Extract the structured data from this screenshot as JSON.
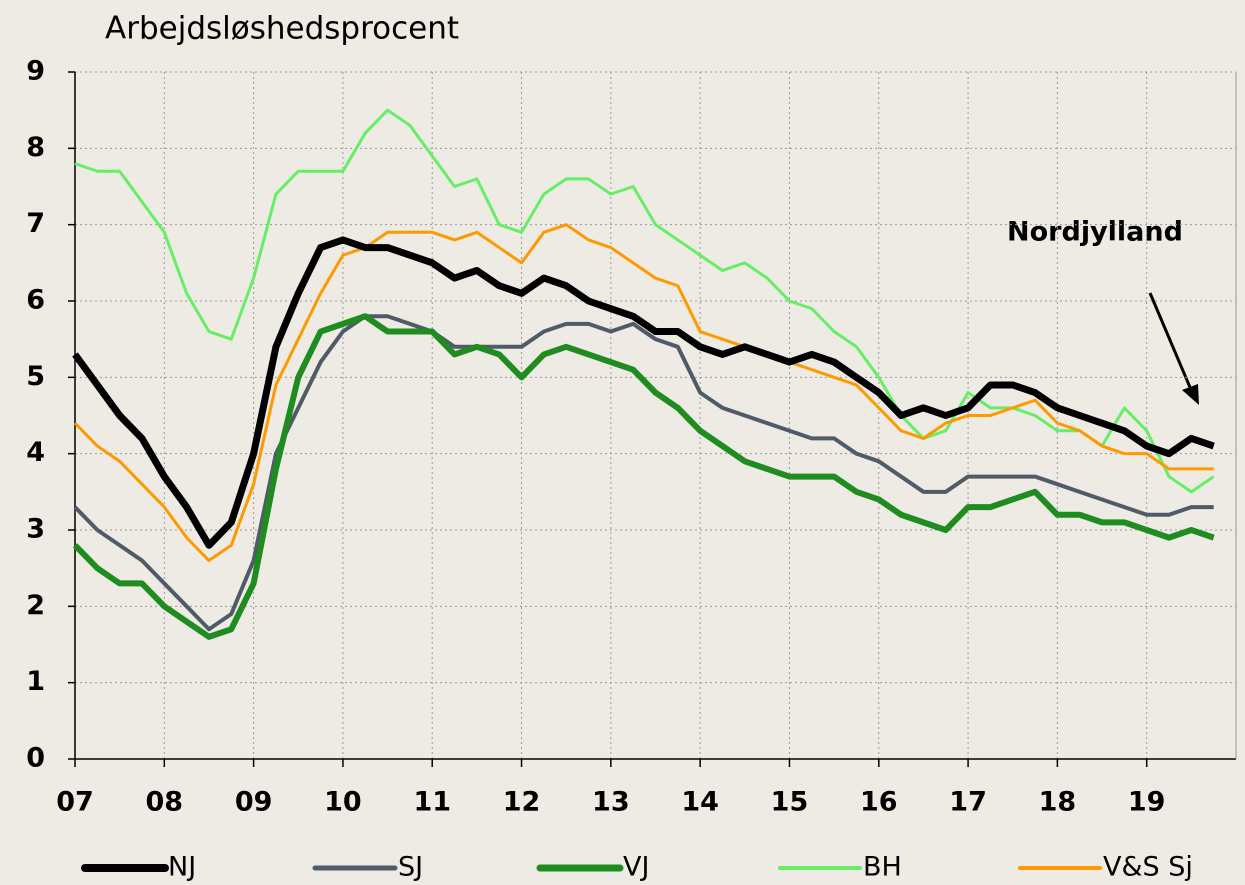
{
  "chart_data": {
    "type": "line",
    "title": "Arbejdsløshedsprocent",
    "annotation": "Nordjylland",
    "xlim": [
      2007,
      2020
    ],
    "xticks": [
      {
        "value": 2007,
        "label": "07"
      },
      {
        "value": 2008,
        "label": "08"
      },
      {
        "value": 2009,
        "label": "09"
      },
      {
        "value": 2010,
        "label": "10"
      },
      {
        "value": 2011,
        "label": "11"
      },
      {
        "value": 2012,
        "label": "12"
      },
      {
        "value": 2013,
        "label": "13"
      },
      {
        "value": 2014,
        "label": "14"
      },
      {
        "value": 2015,
        "label": "15"
      },
      {
        "value": 2016,
        "label": "16"
      },
      {
        "value": 2017,
        "label": "17"
      },
      {
        "value": 2018,
        "label": "18"
      },
      {
        "value": 2019,
        "label": "19"
      }
    ],
    "ylim": [
      0,
      9
    ],
    "yticks": [
      0,
      1,
      2,
      3,
      4,
      5,
      6,
      7,
      8,
      9
    ],
    "grid": true,
    "legend": "bottom",
    "x": [
      2007,
      2007.25,
      2007.5,
      2007.75,
      2008,
      2008.25,
      2008.5,
      2008.75,
      2009,
      2009.25,
      2009.5,
      2009.75,
      2010,
      2010.25,
      2010.5,
      2010.75,
      2011,
      2011.25,
      2011.5,
      2011.75,
      2012,
      2012.25,
      2012.5,
      2012.75,
      2013,
      2013.25,
      2013.5,
      2013.75,
      2014,
      2014.25,
      2014.5,
      2014.75,
      2015,
      2015.25,
      2015.5,
      2015.75,
      2016,
      2016.25,
      2016.5,
      2016.75,
      2017,
      2017.25,
      2017.5,
      2017.75,
      2018,
      2018.25,
      2018.5,
      2018.75,
      2019,
      2019.25,
      2019.5,
      2019.75
    ],
    "series": [
      {
        "name": "NJ",
        "color": "#000000",
        "line_width": 7,
        "values": [
          5.3,
          4.9,
          4.5,
          4.2,
          3.7,
          3.3,
          2.8,
          3.1,
          4.0,
          5.4,
          6.1,
          6.7,
          6.8,
          6.7,
          6.7,
          6.6,
          6.5,
          6.3,
          6.4,
          6.2,
          6.1,
          6.3,
          6.2,
          6.0,
          5.9,
          5.8,
          5.6,
          5.6,
          5.4,
          5.3,
          5.4,
          5.3,
          5.2,
          5.3,
          5.2,
          5.0,
          4.8,
          4.5,
          4.6,
          4.5,
          4.6,
          4.9,
          4.9,
          4.8,
          4.6,
          4.5,
          4.4,
          4.3,
          4.1,
          4.0,
          4.2,
          4.1
        ]
      },
      {
        "name": "SJ",
        "color": "#4f5b66",
        "line_width": 4,
        "values": [
          3.3,
          3.0,
          2.8,
          2.6,
          2.3,
          2.0,
          1.7,
          1.9,
          2.6,
          4.0,
          4.6,
          5.2,
          5.6,
          5.8,
          5.8,
          5.7,
          5.6,
          5.4,
          5.4,
          5.4,
          5.4,
          5.6,
          5.7,
          5.7,
          5.6,
          5.7,
          5.5,
          5.4,
          4.8,
          4.6,
          4.5,
          4.4,
          4.3,
          4.2,
          4.2,
          4.0,
          3.9,
          3.7,
          3.5,
          3.5,
          3.7,
          3.7,
          3.7,
          3.7,
          3.6,
          3.5,
          3.4,
          3.3,
          3.2,
          3.2,
          3.3,
          3.3
        ]
      },
      {
        "name": "VJ",
        "color": "#1e8c1e",
        "line_width": 6,
        "values": [
          2.8,
          2.5,
          2.3,
          2.3,
          2.0,
          1.8,
          1.6,
          1.7,
          2.3,
          3.8,
          5.0,
          5.6,
          5.7,
          5.8,
          5.6,
          5.6,
          5.6,
          5.3,
          5.4,
          5.3,
          5.0,
          5.3,
          5.4,
          5.3,
          5.2,
          5.1,
          4.8,
          4.6,
          4.3,
          4.1,
          3.9,
          3.8,
          3.7,
          3.7,
          3.7,
          3.5,
          3.4,
          3.2,
          3.1,
          3.0,
          3.3,
          3.3,
          3.4,
          3.5,
          3.2,
          3.2,
          3.1,
          3.1,
          3.0,
          2.9,
          3.0,
          2.9
        ]
      },
      {
        "name": "BH",
        "color": "#66ee66",
        "line_width": 3,
        "values": [
          7.8,
          7.7,
          7.7,
          7.3,
          6.9,
          6.1,
          5.6,
          5.5,
          6.3,
          7.4,
          7.7,
          7.7,
          7.7,
          8.2,
          8.5,
          8.3,
          7.9,
          7.5,
          7.6,
          7.0,
          6.9,
          7.4,
          7.6,
          7.6,
          7.4,
          7.5,
          7.0,
          6.8,
          6.6,
          6.4,
          6.5,
          6.3,
          6.0,
          5.9,
          5.6,
          5.4,
          5.0,
          4.5,
          4.2,
          4.3,
          4.8,
          4.6,
          4.6,
          4.5,
          4.3,
          4.3,
          4.1,
          4.6,
          4.3,
          3.7,
          3.5,
          3.7
        ]
      },
      {
        "name": "V&S Sj",
        "color": "#ff9900",
        "line_width": 3,
        "values": [
          4.4,
          4.1,
          3.9,
          3.6,
          3.3,
          2.9,
          2.6,
          2.8,
          3.6,
          4.9,
          5.5,
          6.1,
          6.6,
          6.7,
          6.9,
          6.9,
          6.9,
          6.8,
          6.9,
          6.7,
          6.5,
          6.9,
          7.0,
          6.8,
          6.7,
          6.5,
          6.3,
          6.2,
          5.6,
          5.5,
          5.4,
          5.3,
          5.2,
          5.1,
          5.0,
          4.9,
          4.6,
          4.3,
          4.2,
          4.4,
          4.5,
          4.5,
          4.6,
          4.7,
          4.4,
          4.3,
          4.1,
          4.0,
          4.0,
          3.8,
          3.8,
          3.8
        ]
      }
    ]
  }
}
